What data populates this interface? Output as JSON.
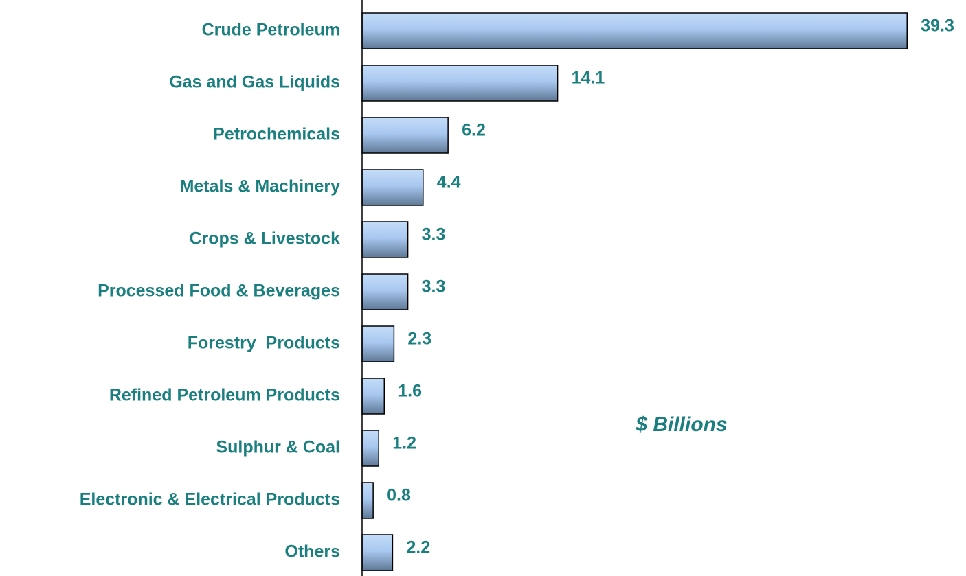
{
  "chart_data": {
    "type": "hbar",
    "categories": [
      "Crude Petroleum",
      "Gas and Gas Liquids",
      "Petrochemicals",
      "Metals & Machinery",
      "Crops & Livestock",
      "Processed Food & Beverages",
      "Forestry  Products",
      "Refined Petroleum Products",
      "Sulphur & Coal",
      "Electronic & Electrical Products",
      "Others"
    ],
    "values": [
      39.3,
      14.1,
      6.2,
      4.4,
      3.3,
      3.3,
      2.3,
      1.6,
      1.2,
      0.8,
      2.2
    ],
    "color": "#a9c8f0",
    "xlim": [
      0,
      43.5
    ],
    "annotation": "$ Billions"
  }
}
